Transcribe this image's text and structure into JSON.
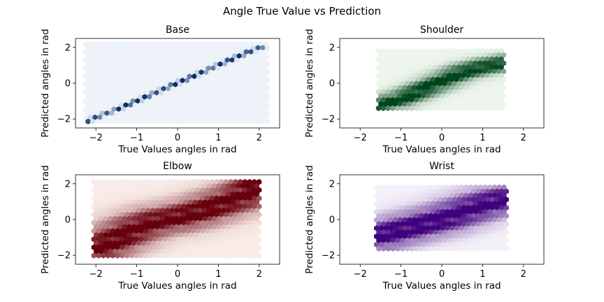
{
  "suptitle": "Angle True Value vs Prediction",
  "chart_data": [
    {
      "type": "heatmap",
      "title": "Base",
      "xlabel": "True Values angles in rad",
      "ylabel": "Predicted angles in rad",
      "xlim": [
        -2.5,
        2.5
      ],
      "ylim": [
        -2.5,
        2.5
      ],
      "xticks": [
        -2,
        -1,
        0,
        1,
        2
      ],
      "yticks": [
        -2,
        0,
        2
      ],
      "colormap": "Blues",
      "colors": [
        "#f7fbff",
        "#08306b"
      ],
      "hexbin_extent": {
        "x": [
          -2.25,
          2.25
        ],
        "y": [
          -2.2,
          2.2
        ]
      },
      "spread": 0.05,
      "points": [
        {
          "x": -2.2,
          "y": -2.1
        },
        {
          "x": -1.8,
          "y": -1.75
        },
        {
          "x": -1.5,
          "y": -1.5
        },
        {
          "x": -1.2,
          "y": -1.2
        },
        {
          "x": -0.9,
          "y": -0.9
        },
        {
          "x": -0.6,
          "y": -0.6
        },
        {
          "x": -0.3,
          "y": -0.3
        },
        {
          "x": 0.0,
          "y": 0.0
        },
        {
          "x": 0.3,
          "y": 0.3
        },
        {
          "x": 0.6,
          "y": 0.6
        },
        {
          "x": 0.9,
          "y": 0.9
        },
        {
          "x": 1.2,
          "y": 1.2
        },
        {
          "x": 1.5,
          "y": 1.5
        },
        {
          "x": 1.8,
          "y": 1.8
        },
        {
          "x": 2.1,
          "y": 2.05
        }
      ]
    },
    {
      "type": "heatmap",
      "title": "Shoulder",
      "xlabel": "True Values angles in rad",
      "ylabel": "Predicted angles in rad",
      "xlim": [
        -2.5,
        2.5
      ],
      "ylim": [
        -2.5,
        2.5
      ],
      "xticks": [
        -2,
        -1,
        0,
        1,
        2
      ],
      "yticks": [
        -2,
        0,
        2
      ],
      "colormap": "Greens",
      "colors": [
        "#f7fcf5",
        "#00441b"
      ],
      "hexbin_extent": {
        "x": [
          -1.55,
          1.55
        ],
        "y": [
          -1.6,
          1.8
        ]
      },
      "spread": 0.3,
      "points": [
        {
          "x": -1.5,
          "y": -1.2
        },
        {
          "x": -1.0,
          "y": -0.9
        },
        {
          "x": -0.5,
          "y": -0.4
        },
        {
          "x": 0.0,
          "y": 0.1
        },
        {
          "x": 0.5,
          "y": 0.6
        },
        {
          "x": 1.0,
          "y": 0.9
        },
        {
          "x": 1.5,
          "y": 1.1
        }
      ]
    },
    {
      "type": "heatmap",
      "title": "Elbow",
      "xlabel": "True Values angles in rad",
      "ylabel": "Predicted angles in rad",
      "xlim": [
        -2.5,
        2.5
      ],
      "ylim": [
        -2.5,
        2.5
      ],
      "xticks": [
        -2,
        -1,
        0,
        1,
        2
      ],
      "yticks": [
        -2,
        0,
        2
      ],
      "colormap": "Reds",
      "colors": [
        "#fff5f0",
        "#67000d"
      ],
      "hexbin_extent": {
        "x": [
          -2.05,
          2.05
        ],
        "y": [
          -2.2,
          2.1
        ]
      },
      "spread": 0.55,
      "points": [
        {
          "x": -2.0,
          "y": -1.7
        },
        {
          "x": -1.5,
          "y": -1.1
        },
        {
          "x": -1.0,
          "y": -0.5
        },
        {
          "x": -0.5,
          "y": -0.1
        },
        {
          "x": 0.0,
          "y": 0.1
        },
        {
          "x": 0.5,
          "y": 0.4
        },
        {
          "x": 1.0,
          "y": 0.8
        },
        {
          "x": 1.5,
          "y": 1.2
        },
        {
          "x": 1.9,
          "y": 1.8
        }
      ]
    },
    {
      "type": "heatmap",
      "title": "Wrist",
      "xlabel": "True Values angles in rad",
      "ylabel": "Predicted angles in rad",
      "xlim": [
        -2.5,
        2.5
      ],
      "ylim": [
        -2.5,
        2.5
      ],
      "xticks": [
        -2,
        -1,
        0,
        1,
        2
      ],
      "yticks": [
        -2,
        0,
        2
      ],
      "colormap": "Purples",
      "colors": [
        "#fcfbfd",
        "#3f007d"
      ],
      "hexbin_extent": {
        "x": [
          -1.6,
          1.6
        ],
        "y": [
          -1.8,
          1.8
        ]
      },
      "spread": 0.55,
      "points": [
        {
          "x": -1.5,
          "y": -0.9
        },
        {
          "x": -1.0,
          "y": -0.6
        },
        {
          "x": -0.5,
          "y": -0.3
        },
        {
          "x": 0.0,
          "y": 0.0
        },
        {
          "x": 0.5,
          "y": 0.4
        },
        {
          "x": 1.0,
          "y": 0.8
        },
        {
          "x": 1.5,
          "y": 1.1
        }
      ]
    }
  ]
}
